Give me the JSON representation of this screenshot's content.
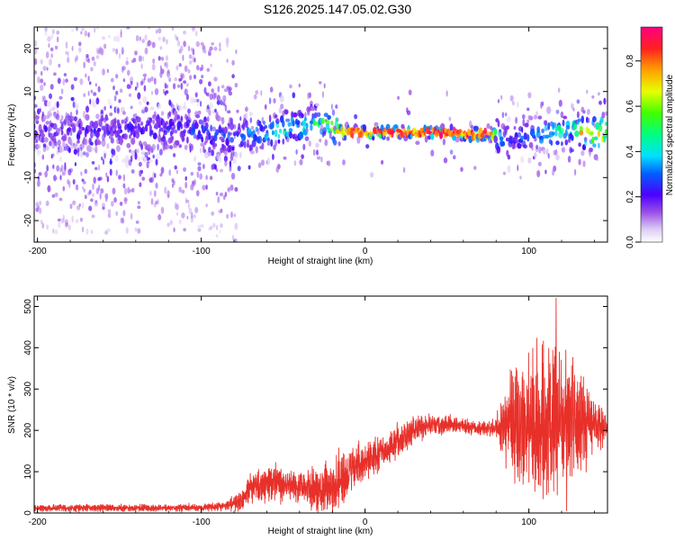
{
  "title": "S126.2025.147.05.02.G30",
  "chart_data": [
    {
      "type": "heatmap",
      "xlabel": "Height of straight line (km)",
      "ylabel": "Frequency (Hz)",
      "xlim": [
        -202,
        148
      ],
      "ylim": [
        -25,
        25
      ],
      "xticks": [
        "-200",
        "-100",
        "0",
        "100"
      ],
      "xtick_values": [
        -200,
        -100,
        0,
        100
      ],
      "yticks": [
        "-20",
        "-10",
        "0",
        "10",
        "20"
      ],
      "ytick_values": [
        -20,
        -10,
        0,
        10,
        20
      ],
      "colorbar": {
        "label": "Normalized spectral amplitude",
        "range": [
          0.0,
          0.95
        ],
        "ticks": [
          "0.0",
          "0.2",
          "0.4",
          "0.6",
          "0.8"
        ],
        "tick_values": [
          0.0,
          0.2,
          0.4,
          0.6,
          0.8
        ]
      },
      "ridge": {
        "x": [
          -202,
          -150,
          -100,
          -80,
          -70,
          -55,
          -45,
          -35,
          -25,
          -15,
          0,
          40,
          75,
          80,
          85,
          100,
          115,
          125,
          135,
          148
        ],
        "y": [
          1,
          1,
          1,
          -1,
          0,
          1,
          2,
          2,
          3,
          0.5,
          0.5,
          0.5,
          0,
          0,
          -1,
          0,
          0.5,
          1,
          0.5,
          0.5
        ],
        "peak_amplitude": [
          0.2,
          0.25,
          0.3,
          0.3,
          0.4,
          0.5,
          0.55,
          0.5,
          0.55,
          0.8,
          0.9,
          0.9,
          0.9,
          0.6,
          0.3,
          0.4,
          0.55,
          0.5,
          0.85,
          0.85
        ]
      }
    },
    {
      "type": "line",
      "xlabel": "Height of straight line (km)",
      "ylabel": "SNR (10 * v/v)",
      "xlim": [
        -202,
        148
      ],
      "ylim": [
        0,
        525
      ],
      "xticks": [
        "-200",
        "-100",
        "0",
        "100"
      ],
      "xtick_values": [
        -200,
        -100,
        0,
        100
      ],
      "yticks": [
        "0",
        "100",
        "200",
        "300",
        "400",
        "500"
      ],
      "ytick_values": [
        0,
        100,
        200,
        300,
        400,
        500
      ],
      "color": "#e8302a",
      "series": [
        {
          "x": [
            -202,
            -150,
            -100,
            -85,
            -75,
            -70,
            -60,
            -50,
            -40,
            -30,
            -20,
            -15,
            -10,
            -5,
            0,
            10,
            20,
            30,
            40,
            50,
            60,
            70,
            80,
            85,
            90,
            100,
            110,
            115,
            120,
            130,
            140,
            148
          ],
          "mean": [
            12,
            12,
            13,
            18,
            30,
            60,
            75,
            70,
            65,
            55,
            60,
            75,
            95,
            115,
            125,
            145,
            175,
            200,
            215,
            215,
            210,
            205,
            205,
            210,
            215,
            220,
            215,
            220,
            220,
            215,
            205,
            205
          ],
          "amplitude": [
            8,
            8,
            8,
            10,
            25,
            35,
            40,
            40,
            40,
            45,
            60,
            70,
            55,
            45,
            40,
            40,
            40,
            30,
            25,
            20,
            15,
            15,
            20,
            80,
            130,
            160,
            170,
            180,
            150,
            120,
            60,
            40
          ]
        }
      ]
    }
  ]
}
